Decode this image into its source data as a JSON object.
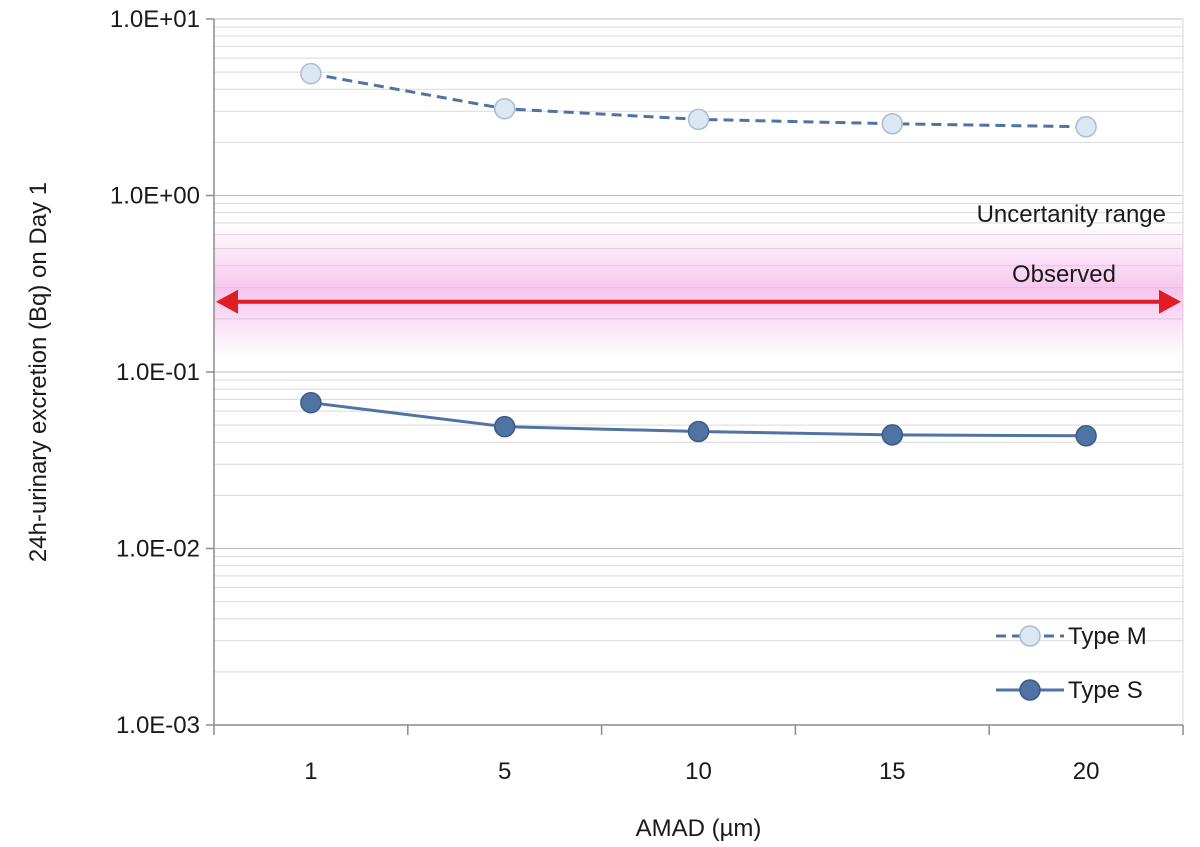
{
  "chart_data": {
    "type": "line",
    "ylabel": "24h-urinary excretion (Bq) on Day 1",
    "xlabel": "AMAD (µm)",
    "y_scale": "log",
    "ylim": [
      0.001,
      10
    ],
    "y_tick_labels": [
      "1.0E+01",
      "1.0E+00",
      "1.0E-01",
      "1.0E-02",
      "1.0E-03"
    ],
    "x": [
      1,
      5,
      10,
      15,
      20
    ],
    "x_tick_labels": [
      "1",
      "5",
      "10",
      "15",
      "20"
    ],
    "series": [
      {
        "name": "Type M",
        "values": [
          4.9,
          3.1,
          2.7,
          2.55,
          2.45
        ],
        "style": "dashed",
        "marker_fill": "#dce7f3"
      },
      {
        "name": "Type S",
        "values": [
          0.067,
          0.049,
          0.046,
          0.044,
          0.0435
        ],
        "style": "solid",
        "marker_fill": "#4f73a3"
      }
    ],
    "annotations": {
      "band_label": "Uncertanity range",
      "observed_label": "Observed",
      "observed_value": 0.25,
      "band_range": [
        0.12,
        0.7
      ]
    },
    "legend_position": "bottom-right",
    "grid": true,
    "colors": {
      "line": "#4f73a3",
      "marker_edge": "#a9bcd3",
      "arrow": "#e01c24",
      "band": "#f2a6e6"
    }
  }
}
